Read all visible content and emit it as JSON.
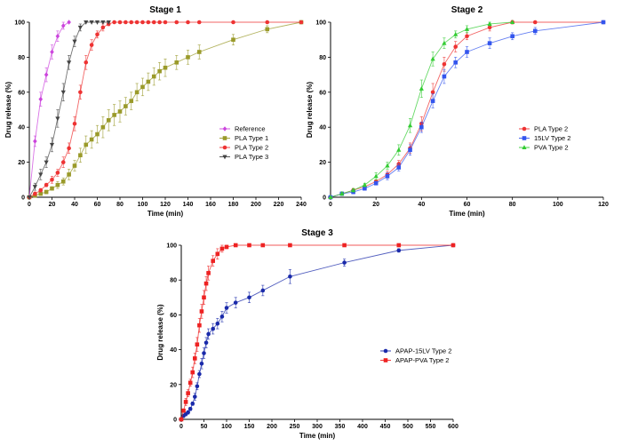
{
  "chart_data": [
    {
      "type": "line",
      "title": "Stage 1",
      "xlabel": "Time (min)",
      "ylabel": "Drug release (%)",
      "xlim": [
        0,
        240
      ],
      "ylim": [
        0,
        100
      ],
      "xticks": [
        0,
        20,
        40,
        60,
        80,
        100,
        120,
        140,
        160,
        180,
        200,
        220,
        240
      ],
      "yticks": [
        0,
        20,
        40,
        60,
        80,
        100
      ],
      "grid": false,
      "legend_position": "center-right",
      "series": [
        {
          "name": "Reference",
          "color": "#cc44dd",
          "marker": "diamond",
          "x": [
            0,
            5,
            10,
            15,
            20,
            25,
            30,
            35
          ],
          "y": [
            0,
            32,
            56,
            70,
            83,
            92,
            98,
            100
          ],
          "err": [
            0,
            3,
            4,
            4,
            4,
            3,
            2,
            0
          ]
        },
        {
          "name": "PLA Type 1",
          "color": "#9a9a2a",
          "marker": "square",
          "x": [
            0,
            5,
            10,
            15,
            20,
            25,
            30,
            35,
            40,
            45,
            50,
            55,
            60,
            65,
            70,
            75,
            80,
            85,
            90,
            95,
            100,
            105,
            110,
            115,
            120,
            130,
            140,
            150,
            180,
            210,
            240
          ],
          "y": [
            0,
            1,
            2,
            3,
            5,
            7,
            9,
            13,
            18,
            24,
            30,
            33,
            36,
            40,
            44,
            47,
            49,
            52,
            55,
            60,
            63,
            66,
            69,
            72,
            74,
            77,
            80,
            83,
            90,
            96,
            100
          ],
          "err": [
            0,
            1,
            1,
            1,
            1,
            2,
            2,
            3,
            3,
            4,
            5,
            5,
            5,
            6,
            6,
            6,
            6,
            5,
            5,
            5,
            5,
            5,
            5,
            5,
            5,
            4,
            4,
            4,
            3,
            2,
            0
          ]
        },
        {
          "name": "PLA Type 2",
          "color": "#ee3333",
          "marker": "circle",
          "x": [
            0,
            5,
            10,
            15,
            20,
            25,
            30,
            35,
            40,
            45,
            50,
            55,
            60,
            65,
            70,
            75,
            80,
            85,
            90,
            95,
            100,
            105,
            110,
            115,
            120,
            130,
            140,
            150,
            180,
            210,
            240
          ],
          "y": [
            0,
            2,
            4,
            7,
            10,
            14,
            20,
            28,
            42,
            60,
            77,
            87,
            93,
            97,
            99,
            100,
            100,
            100,
            100,
            100,
            100,
            100,
            100,
            100,
            100,
            100,
            100,
            100,
            100,
            100,
            100
          ],
          "err": [
            0,
            1,
            1,
            1,
            2,
            2,
            3,
            3,
            4,
            4,
            4,
            3,
            2,
            2,
            1,
            0,
            0,
            0,
            0,
            0,
            0,
            0,
            0,
            0,
            0,
            0,
            0,
            0,
            0,
            0,
            0
          ]
        },
        {
          "name": "PLA Type 3",
          "color": "#444444",
          "marker": "triangle-down",
          "x": [
            0,
            5,
            10,
            15,
            20,
            25,
            30,
            35,
            40,
            45,
            50,
            55,
            60,
            65,
            70
          ],
          "y": [
            0,
            6,
            13,
            20,
            30,
            45,
            60,
            77,
            89,
            97,
            100,
            100,
            100,
            100,
            100
          ],
          "err": [
            0,
            2,
            3,
            3,
            4,
            5,
            5,
            4,
            3,
            2,
            0,
            0,
            0,
            0,
            0
          ]
        }
      ]
    },
    {
      "type": "line",
      "title": "Stage 2",
      "xlabel": "Time (min)",
      "ylabel": "Drug release (%)",
      "xlim": [
        0,
        120
      ],
      "ylim": [
        0,
        100
      ],
      "xticks": [
        0,
        20,
        40,
        60,
        80,
        100,
        120
      ],
      "yticks": [
        0,
        20,
        40,
        60,
        80,
        100
      ],
      "grid": false,
      "legend_position": "center-right",
      "series": [
        {
          "name": "PLA Type 2",
          "color": "#ee3333",
          "marker": "circle",
          "x": [
            0,
            5,
            10,
            15,
            20,
            25,
            30,
            35,
            40,
            45,
            50,
            55,
            60,
            70,
            80,
            90,
            120
          ],
          "y": [
            0,
            2,
            4,
            6,
            9,
            13,
            19,
            28,
            42,
            60,
            76,
            86,
            92,
            97,
            100,
            100,
            100
          ],
          "err": [
            0,
            1,
            1,
            1,
            1,
            2,
            2,
            3,
            4,
            5,
            4,
            3,
            2,
            2,
            1,
            0,
            0
          ]
        },
        {
          "name": "15LV Type 2",
          "color": "#3355ee",
          "marker": "square",
          "x": [
            0,
            5,
            10,
            15,
            20,
            25,
            30,
            35,
            40,
            45,
            50,
            55,
            60,
            70,
            80,
            90,
            120
          ],
          "y": [
            0,
            2,
            3,
            5,
            8,
            12,
            17,
            27,
            40,
            55,
            69,
            77,
            83,
            88,
            92,
            95,
            100
          ],
          "err": [
            0,
            1,
            1,
            1,
            1,
            2,
            2,
            3,
            3,
            4,
            4,
            3,
            3,
            3,
            2,
            2,
            0
          ]
        },
        {
          "name": "PVA Type 2",
          "color": "#33cc33",
          "marker": "triangle-up",
          "x": [
            0,
            5,
            10,
            15,
            20,
            25,
            30,
            35,
            40,
            45,
            50,
            55,
            60,
            70,
            80
          ],
          "y": [
            0,
            2,
            4,
            7,
            12,
            18,
            27,
            41,
            62,
            79,
            88,
            93,
            96,
            99,
            100
          ],
          "err": [
            0,
            1,
            1,
            1,
            2,
            2,
            3,
            4,
            5,
            4,
            3,
            2,
            2,
            1,
            0
          ]
        }
      ]
    },
    {
      "type": "line",
      "title": "Stage 3",
      "xlabel": "Time (min)",
      "ylabel": "Drug release (%)",
      "xlim": [
        0,
        600
      ],
      "ylim": [
        0,
        100
      ],
      "xticks": [
        0,
        50,
        100,
        150,
        200,
        250,
        300,
        350,
        400,
        450,
        500,
        550,
        600
      ],
      "yticks": [
        0,
        20,
        40,
        60,
        80,
        100
      ],
      "grid": false,
      "legend_position": "bottom-right",
      "series": [
        {
          "name": "APAP-15LV Type 2",
          "color": "#1a2aaa",
          "marker": "circle",
          "x": [
            0,
            5,
            10,
            15,
            20,
            25,
            30,
            35,
            40,
            45,
            50,
            55,
            60,
            70,
            80,
            90,
            100,
            120,
            150,
            180,
            240,
            360,
            480,
            600
          ],
          "y": [
            0,
            2,
            3,
            4,
            6,
            9,
            13,
            19,
            26,
            32,
            38,
            44,
            49,
            52,
            55,
            59,
            64,
            67,
            70,
            74,
            82,
            90,
            97,
            100
          ],
          "err": [
            0,
            1,
            1,
            1,
            1,
            1,
            2,
            2,
            2,
            3,
            3,
            3,
            3,
            3,
            3,
            3,
            3,
            3,
            3,
            3,
            4,
            2,
            1,
            0
          ]
        },
        {
          "name": "APAP-PVA Type 2",
          "color": "#ee2222",
          "marker": "square",
          "x": [
            0,
            5,
            10,
            15,
            20,
            25,
            30,
            35,
            40,
            45,
            50,
            55,
            60,
            70,
            80,
            90,
            100,
            120,
            150,
            180,
            240,
            360,
            480,
            600
          ],
          "y": [
            0,
            5,
            10,
            15,
            21,
            27,
            35,
            43,
            54,
            62,
            70,
            78,
            84,
            91,
            95,
            98,
            99,
            100,
            100,
            100,
            100,
            100,
            100,
            100
          ],
          "err": [
            0,
            1,
            2,
            2,
            2,
            3,
            3,
            4,
            4,
            4,
            4,
            4,
            4,
            3,
            3,
            2,
            1,
            0,
            0,
            0,
            0,
            0,
            0,
            0
          ]
        }
      ]
    }
  ]
}
